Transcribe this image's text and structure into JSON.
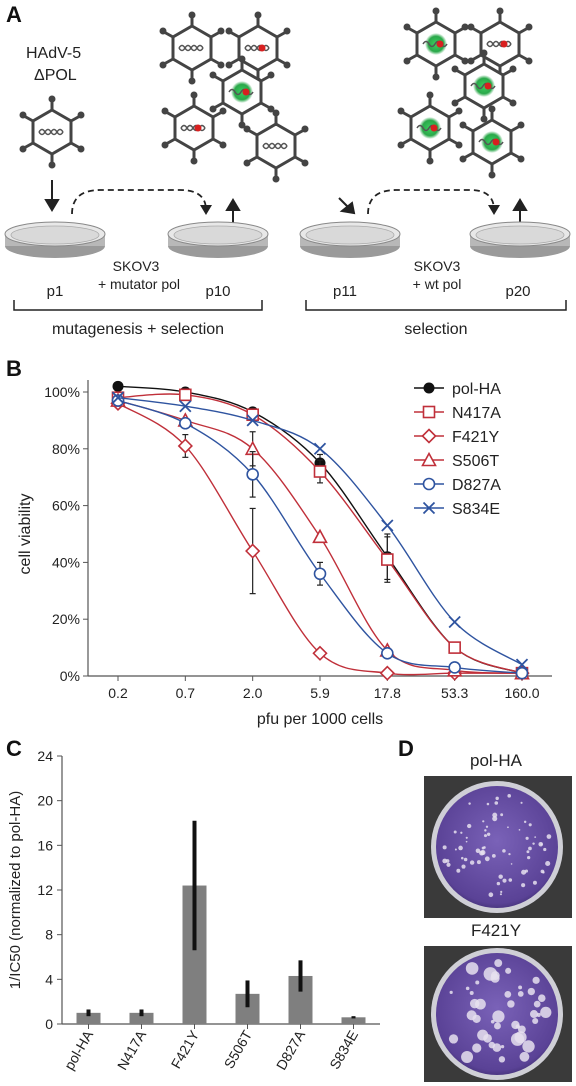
{
  "panels": {
    "a": {
      "letter": "A",
      "virus_label_1": "HAdV-5",
      "virus_label_2": "ΔPOL",
      "dish_labels": [
        "p1",
        "p10",
        "p11",
        "p20"
      ],
      "cell_label_1a": "SKOV3",
      "cell_label_1b": "+ mutator pol",
      "cell_label_2a": "SKOV3",
      "cell_label_2b": "+ wt pol",
      "phase_1": "mutagenesis + selection",
      "phase_2": "selection"
    },
    "b": {
      "letter": "B"
    },
    "c": {
      "letter": "C"
    },
    "d": {
      "letter": "D",
      "plate_labels": [
        "pol-HA",
        "F421Y"
      ],
      "plate_color": "#6a52a8",
      "plaque_color": "#e6e0ef"
    }
  },
  "colors": {
    "pol_HA": "#111111",
    "N417A": "#c0303a",
    "F421Y": "#c0303a",
    "S506T": "#c0303a",
    "D827A": "#2f54a0",
    "S834E": "#2f54a0",
    "bar": "#7f7f7f"
  },
  "chart_data": [
    {
      "type": "line",
      "panel": "B",
      "xlabel": "pfu per 1000 cells",
      "ylabel": "cell viability",
      "categories": [
        "0.2",
        "0.7",
        "2.0",
        "5.9",
        "17.8",
        "53.3",
        "160.0"
      ],
      "ylim": [
        0,
        100
      ],
      "yticks": [
        "0%",
        "20%",
        "40%",
        "60%",
        "80%",
        "100%"
      ],
      "legend_position": "top-right",
      "series": [
        {
          "name": "pol-HA",
          "marker": "filled-circle",
          "values": [
            102,
            100,
            93,
            75,
            42,
            10,
            1
          ],
          "errors": [
            0,
            0,
            0,
            3,
            8,
            0,
            0
          ]
        },
        {
          "name": "N417A",
          "marker": "square",
          "values": [
            98,
            99,
            92,
            72,
            41,
            10,
            1
          ],
          "errors": [
            0,
            0,
            0,
            4,
            8,
            0,
            0
          ]
        },
        {
          "name": "F421Y",
          "marker": "diamond",
          "values": [
            96,
            81,
            44,
            8,
            1,
            1,
            1
          ],
          "errors": [
            0,
            4,
            15,
            0,
            0,
            0,
            0
          ]
        },
        {
          "name": "S506T",
          "marker": "triangle",
          "values": [
            97,
            90,
            80,
            49,
            9,
            2,
            1
          ],
          "errors": [
            0,
            0,
            6,
            0,
            0,
            0,
            0
          ]
        },
        {
          "name": "D827A",
          "marker": "circle",
          "values": [
            97,
            89,
            71,
            36,
            8,
            3,
            1
          ],
          "errors": [
            0,
            0,
            8,
            4,
            0,
            0,
            0
          ]
        },
        {
          "name": "S834E",
          "marker": "x",
          "values": [
            98,
            95,
            90,
            80,
            53,
            19,
            4
          ],
          "errors": [
            0,
            0,
            0,
            0,
            0,
            0,
            0
          ]
        }
      ]
    },
    {
      "type": "bar",
      "panel": "C",
      "ylabel": "1/IC50 (normalized to pol-HA)",
      "categories": [
        "pol-HA",
        "N417A",
        "F421Y",
        "S506T",
        "D827A",
        "S834E"
      ],
      "values": [
        1.0,
        1.0,
        12.4,
        2.7,
        4.3,
        0.6
      ],
      "errors": [
        0.3,
        0.3,
        5.8,
        1.2,
        1.4,
        0.1
      ],
      "ylim": [
        0,
        24
      ],
      "yticks": [
        "0",
        "4",
        "8",
        "12",
        "16",
        "20",
        "24"
      ]
    }
  ]
}
